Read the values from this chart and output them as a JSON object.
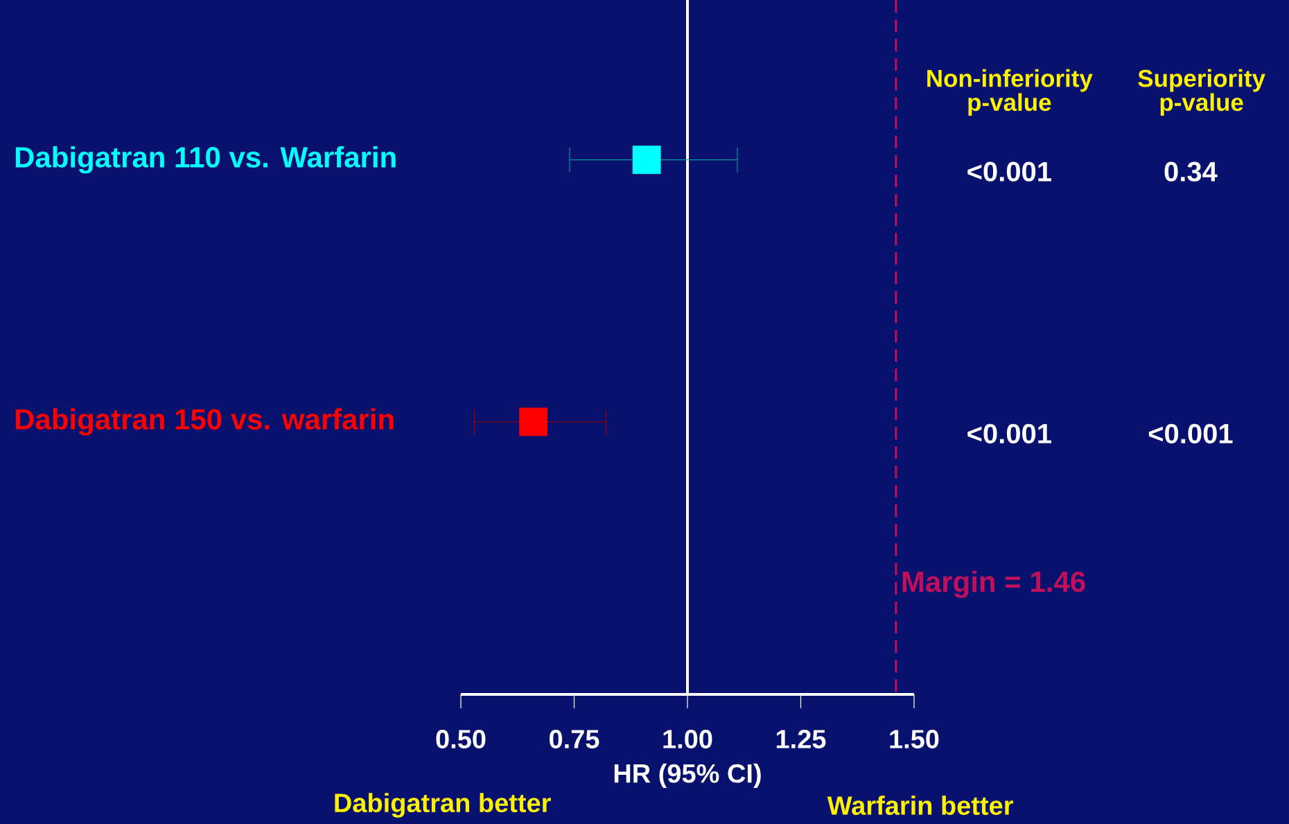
{
  "chart_data": {
    "type": "scatter",
    "orientation": "horizontal",
    "categories": [
      "Dabigatran 110 vs. Warfarin",
      "Dabigatran 150 vs. warfarin"
    ],
    "values": [
      0.91,
      0.66
    ],
    "errors": [
      [
        0.74,
        1.11
      ],
      [
        0.53,
        0.82
      ]
    ],
    "colors": [
      "#00ffff",
      "#ff0000"
    ],
    "marker": "square",
    "xlim": [
      0.5,
      1.5
    ],
    "xticks": [
      {
        "value": 0.5,
        "label": "0.50"
      },
      {
        "value": 0.75,
        "label": "0.75"
      },
      {
        "value": 1.0,
        "label": "1.00"
      },
      {
        "value": 1.25,
        "label": "1.25"
      },
      {
        "value": 1.5,
        "label": "1.50"
      }
    ],
    "xlabel": "HR   (95% CI)",
    "ref_lines": [
      {
        "axis": "x",
        "value": 1.0,
        "color": "#ffffff",
        "line_style": "solid"
      },
      {
        "axis": "x",
        "value": 1.46,
        "label": "Margin = 1.46",
        "color": "#c0105a",
        "line_style": "dashed"
      }
    ],
    "annotations": [
      "Dabigatran better",
      "Warfarin better",
      "Non-inferiority p-value",
      "Superiority p-value",
      "<0.001",
      "0.34",
      "<0.001",
      "<0.001"
    ]
  }
}
